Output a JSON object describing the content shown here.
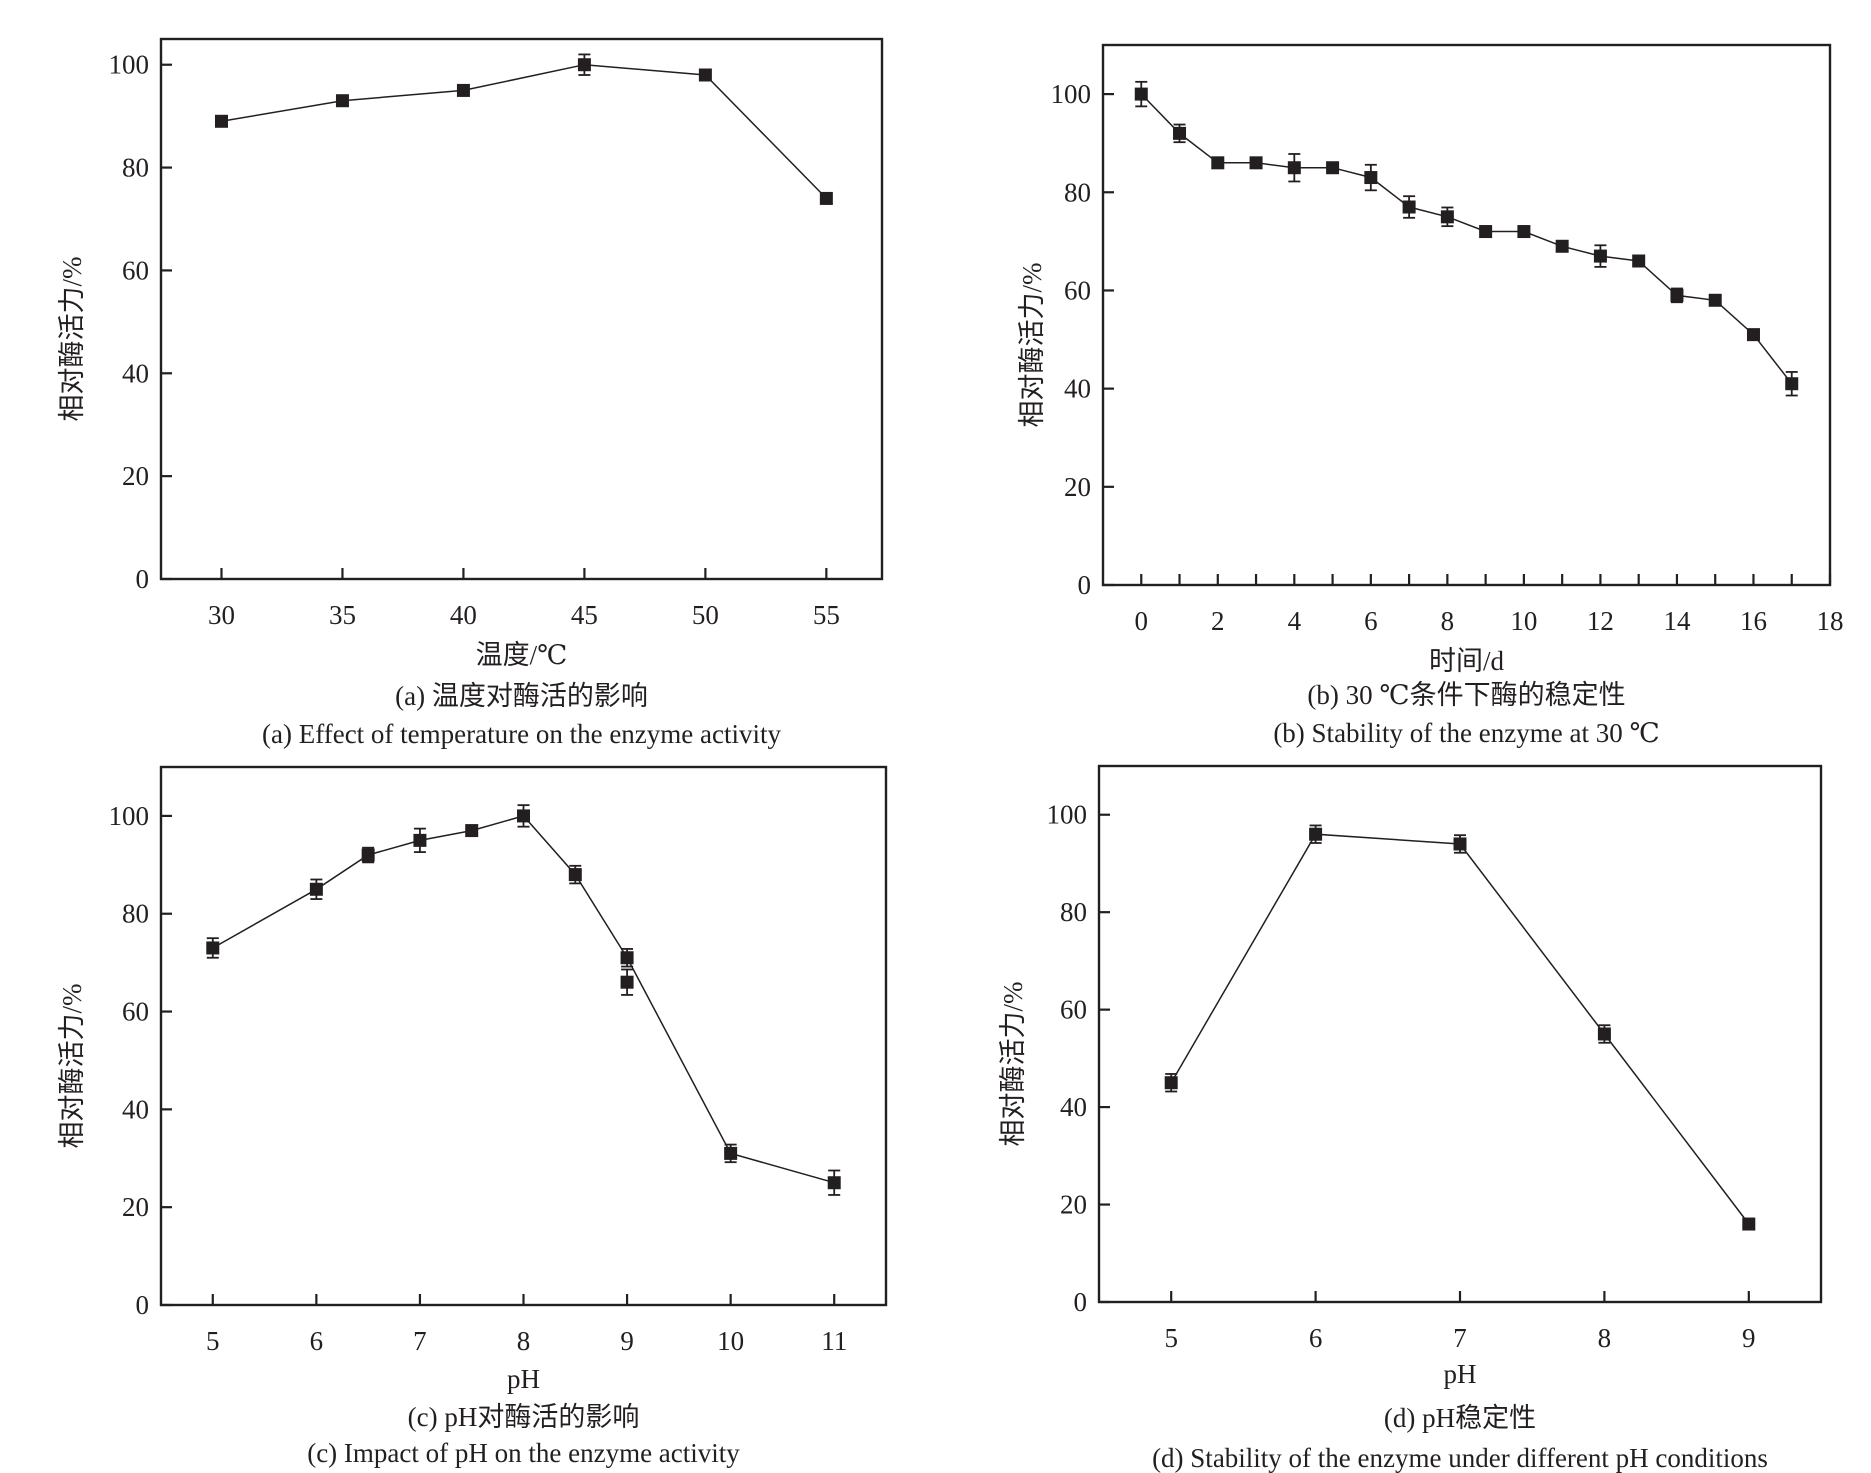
{
  "figure": {
    "background": "#ffffff",
    "ink_color": "#231f20"
  },
  "chart_data": [
    {
      "id": "a",
      "type": "line",
      "marker": "square",
      "xlabel": "温度/℃",
      "ylabel": "相对酶活力/%",
      "caption_cn": "(a) 温度对酶活的影响",
      "caption_en": "(a) Effect of temperature on the enzyme activity",
      "xlim": [
        27.5,
        57.3
      ],
      "ylim": [
        0,
        105
      ],
      "xticks": [
        30,
        35,
        40,
        45,
        50,
        55
      ],
      "yticks": [
        0,
        20,
        40,
        60,
        80,
        100
      ],
      "grid": false,
      "legend": "none",
      "series": [
        {
          "name": "relative activity",
          "x": [
            30,
            35,
            40,
            45,
            50,
            55
          ],
          "y": [
            89,
            93,
            95,
            100,
            98,
            74
          ],
          "err": [
            0,
            0,
            0,
            2,
            0,
            0
          ]
        }
      ]
    },
    {
      "id": "b",
      "type": "line",
      "marker": "square",
      "xlabel": "时间/d",
      "ylabel": "相对酶活力/%",
      "caption_cn": "(b) 30 ℃条件下酶的稳定性",
      "caption_en": "(b) Stability of the enzyme at 30 ℃",
      "xlim": [
        -1,
        18
      ],
      "ylim": [
        0,
        110
      ],
      "xticks": [
        0,
        2,
        4,
        6,
        8,
        10,
        12,
        14,
        16,
        18
      ],
      "xticks_minor": [
        1,
        3,
        5,
        7,
        9,
        11,
        13,
        15,
        17
      ],
      "yticks": [
        0,
        20,
        40,
        60,
        80,
        100
      ],
      "grid": false,
      "legend": "none",
      "series": [
        {
          "name": "relative activity",
          "x": [
            0,
            1,
            2,
            3,
            4,
            5,
            6,
            7,
            8,
            9,
            10,
            11,
            12,
            13,
            14,
            15,
            16,
            17
          ],
          "y": [
            100,
            92,
            86,
            86,
            85,
            85,
            83,
            77,
            75,
            72,
            72,
            69,
            67,
            66,
            59,
            58,
            51,
            41
          ],
          "err": [
            2.5,
            1.8,
            0,
            0,
            2.8,
            0.8,
            2.6,
            2.2,
            1.9,
            0,
            0,
            0,
            2.2,
            0,
            1.4,
            0,
            0,
            2.4
          ]
        }
      ]
    },
    {
      "id": "c",
      "type": "line",
      "marker": "square",
      "xlabel": "pH",
      "ylabel": "相对酶活力/%",
      "caption_cn": "(c) pH对酶活的影响",
      "caption_en": "(c) Impact of pH on the enzyme activity",
      "xlim": [
        4.5,
        11.5
      ],
      "ylim": [
        0,
        110
      ],
      "xticks": [
        5,
        6,
        7,
        8,
        9,
        10,
        11
      ],
      "yticks": [
        0,
        20,
        40,
        60,
        80,
        100
      ],
      "grid": false,
      "legend": "none",
      "series": [
        {
          "name": "relative activity",
          "x": [
            5,
            6,
            6.5,
            7,
            7.5,
            8,
            8.5,
            9,
            10,
            11
          ],
          "y": [
            73,
            85,
            92,
            95,
            97,
            100,
            88,
            71,
            31,
            25
          ],
          "err": [
            2,
            2,
            1.5,
            2.4,
            1,
            2.2,
            1.8,
            1.8,
            1.8,
            2.5
          ]
        },
        {
          "name": "replicate point",
          "x": [
            9
          ],
          "y": [
            66
          ],
          "err": [
            2.6
          ],
          "no_line": true
        }
      ]
    },
    {
      "id": "d",
      "type": "line",
      "marker": "square",
      "xlabel": "pH",
      "ylabel": "相对酶活力/%",
      "caption_cn": "(d) pH稳定性",
      "caption_en": "(d) Stability of the enzyme under different pH conditions",
      "xlim": [
        4.5,
        9.5
      ],
      "ylim": [
        0,
        110
      ],
      "xticks": [
        5,
        6,
        7,
        8,
        9
      ],
      "yticks": [
        0,
        20,
        40,
        60,
        80,
        100
      ],
      "grid": false,
      "legend": "none",
      "series": [
        {
          "name": "relative activity",
          "x": [
            5,
            6,
            7,
            8,
            9
          ],
          "y": [
            45,
            96,
            94,
            55,
            16
          ],
          "err": [
            1.8,
            1.8,
            1.8,
            1.8,
            0
          ]
        }
      ]
    }
  ]
}
